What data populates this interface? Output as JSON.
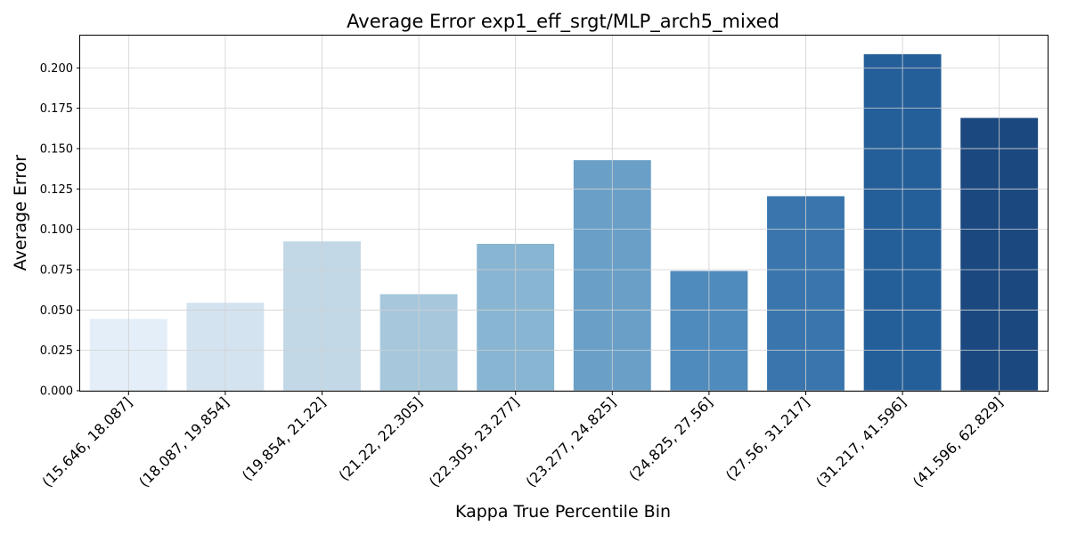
{
  "chart_data": {
    "type": "bar",
    "title": "Average Error exp1_eff_srgt/MLP_arch5_mixed",
    "xlabel": "Kappa True Percentile Bin",
    "ylabel": "Average Error",
    "categories": [
      "(15.646, 18.087]",
      "(18.087, 19.854]",
      "(19.854, 21.22]",
      "(21.22, 22.305]",
      "(22.305, 23.277]",
      "(23.277, 24.825]",
      "(24.825, 27.56]",
      "(27.56, 31.217]",
      "(31.217, 41.596]",
      "(41.596, 62.829]"
    ],
    "values": [
      0.0445,
      0.0545,
      0.0925,
      0.0598,
      0.091,
      0.1428,
      0.0742,
      0.1205,
      0.2085,
      0.169
    ],
    "colors": [
      "#e4eef8",
      "#d4e3f0",
      "#c2d8e7",
      "#a6c7dc",
      "#88b5d1",
      "#6aa0c8",
      "#4f8bbd",
      "#3a76ad",
      "#255f9a",
      "#1b487f"
    ],
    "ylim": [
      0,
      0.22
    ],
    "yticks": [
      "0.000",
      "0.025",
      "0.050",
      "0.075",
      "0.100",
      "0.125",
      "0.150",
      "0.175",
      "0.200"
    ],
    "grid": true,
    "legend": "none"
  }
}
